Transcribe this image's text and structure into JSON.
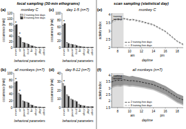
{
  "chart_data": [
    {
      "type": "bar",
      "title": "monkey C",
      "xlabel": "behavioral parameters",
      "ylabel": "occurrence [min]",
      "categories": [
        "move",
        "sit",
        "groom",
        "feed",
        "lie",
        "sleep",
        "play",
        "other"
      ],
      "series": [
        {
          "name": "2 training-free days",
          "color": "#cccccc",
          "values": [
            75,
            40,
            18,
            14,
            7,
            3,
            2,
            1
          ]
        },
        {
          "name": "8 training-free days",
          "color": "#333333",
          "values": [
            80,
            35,
            17,
            12,
            6,
            2,
            1,
            1
          ]
        }
      ],
      "ylim": [
        0,
        120
      ],
      "yticks": [
        0,
        20,
        40,
        60,
        80,
        100,
        120
      ],
      "grid": false,
      "legend": "upper right",
      "annotations": [
        {
          "text": "(a)"
        },
        {
          "text": "focal sampling (30-min ethograms)"
        },
        {
          "text": "*",
          "x": "move"
        },
        {
          "text": "*",
          "x": "sit"
        }
      ]
    },
    {
      "type": "bar",
      "title": "all monkeys (n=7)",
      "xlabel": "behavioral parameters",
      "ylabel": "occurrence [min]",
      "categories": [
        "move",
        "sit",
        "groom",
        "feed",
        "lie",
        "sleep",
        "play",
        "other"
      ],
      "series": [
        {
          "color": "#cccccc",
          "values": [
            72,
            42,
            20,
            16,
            8,
            4,
            2,
            1
          ]
        },
        {
          "color": "#333333",
          "values": [
            76,
            38,
            18,
            14,
            7,
            3,
            2,
            1
          ]
        }
      ],
      "ylim": [
        0,
        100
      ],
      "yticks": [
        0,
        20,
        40,
        60,
        80,
        100
      ],
      "grid": false,
      "legend": false,
      "annotations": [
        {
          "text": "(b)"
        },
        {
          "text": "*",
          "x": "move"
        },
        {
          "text": "*",
          "x": "sit"
        }
      ]
    },
    {
      "type": "bar",
      "title": "day 1-5 (n=7)",
      "xlabel": "behavioral parameters",
      "ylabel": "occurrence [min]",
      "categories": [
        "move",
        "sit",
        "groom",
        "feed",
        "lie",
        "sleep",
        "play",
        "other"
      ],
      "series": [
        {
          "color": "#cccccc",
          "values": [
            65,
            15,
            10,
            8,
            4,
            2,
            1,
            1
          ]
        },
        {
          "color": "#333333",
          "values": [
            70,
            12,
            9,
            6,
            3,
            2,
            1,
            1
          ]
        }
      ],
      "ylim": [
        0,
        100
      ],
      "yticks": [
        0,
        20,
        40,
        60,
        80,
        100
      ],
      "grid": false,
      "legend": false,
      "annotations": [
        {
          "text": "(c)"
        },
        {
          "text": "*",
          "x": "move"
        }
      ]
    },
    {
      "type": "bar",
      "title": "day 8-12 (n=7)",
      "xlabel": "behavioral parameters",
      "ylabel": "occurrence [min]",
      "categories": [
        "move",
        "sit",
        "groom",
        "feed",
        "lie",
        "sleep",
        "play",
        "other"
      ],
      "series": [
        {
          "color": "#cccccc",
          "values": [
            28,
            15,
            10,
            8,
            4,
            2,
            1,
            1
          ]
        },
        {
          "color": "#333333",
          "values": [
            25,
            13,
            9,
            7,
            3,
            2,
            1,
            1
          ]
        }
      ],
      "ylim": [
        0,
        40
      ],
      "yticks": [
        0,
        10,
        20,
        30,
        40
      ],
      "grid": false,
      "legend": false,
      "annotations": [
        {
          "text": "(d)"
        },
        {
          "text": "*",
          "x": "move"
        }
      ]
    },
    {
      "type": "line",
      "title": "monkey C",
      "xlabel": "daytime",
      "ylabel": "activity index",
      "x": [
        7.0,
        7.5,
        8.0,
        8.5,
        9.0,
        9.5,
        10.0,
        10.5,
        11.0,
        11.5,
        12.0,
        12.5,
        13.0,
        13.5,
        14.0,
        14.5,
        15.0,
        15.5,
        16.0,
        16.5,
        17.0,
        17.5,
        18.0,
        18.5,
        19.0
      ],
      "series": [
        {
          "name": "2 training-free days",
          "color": "#000000",
          "line_style": "dashed",
          "values": [
            3.6,
            3.7,
            3.75,
            3.72,
            3.78,
            3.75,
            3.7,
            3.72,
            3.68,
            3.65,
            3.6,
            3.55,
            3.5,
            3.45,
            3.4,
            3.3,
            3.2,
            3.1,
            3.0,
            2.85,
            2.7,
            2.55,
            2.4,
            2.3,
            2.2
          ]
        },
        {
          "name": "8 training-free days",
          "color": "#888888",
          "line_style": "dashed",
          "values": [
            3.5,
            3.62,
            3.68,
            3.65,
            3.72,
            3.7,
            3.65,
            3.68,
            3.62,
            3.58,
            3.54,
            3.5,
            3.45,
            3.4,
            3.35,
            3.25,
            3.15,
            3.05,
            2.95,
            2.8,
            2.65,
            2.5,
            2.35,
            2.25,
            2.15
          ]
        }
      ],
      "xlim": [
        7,
        19
      ],
      "xticks": [
        8,
        10,
        12,
        14,
        16,
        18
      ],
      "ylim": [
        2.0,
        4.1
      ],
      "yticks": [
        2,
        2.5,
        3,
        3.5,
        4
      ],
      "grid": false,
      "legend": "lower left",
      "shaded_range": [
        7.0,
        9.0
      ],
      "annotations": [
        {
          "text": "(e)"
        },
        {
          "text": "scan sampling (statistical day)"
        },
        {
          "text": "training\nsession",
          "x": 8.0,
          "y": 4.0
        },
        {
          "text": "am",
          "x": 10.5
        },
        {
          "text": "pm",
          "x": 15.5
        }
      ]
    },
    {
      "type": "line",
      "title": "all monkeys (n=7)",
      "xlabel": "daytime",
      "ylabel": "activity index",
      "x": [
        7.0,
        7.5,
        8.0,
        8.5,
        9.0,
        9.5,
        10.0,
        10.5,
        11.0,
        11.5,
        12.0,
        12.5,
        13.0,
        13.5,
        14.0,
        14.5,
        15.0,
        15.5,
        16.0,
        16.5,
        17.0,
        17.5,
        18.0,
        18.5,
        19.0
      ],
      "series": [
        {
          "type": "band",
          "color": "#444444",
          "lower": [
            3.1,
            3.2,
            3.25,
            3.22,
            3.3,
            3.28,
            3.22,
            3.24,
            3.2,
            3.18,
            3.14,
            3.1,
            3.05,
            3.0,
            2.95,
            2.85,
            2.75,
            2.65,
            2.55,
            2.4,
            2.25,
            2.1,
            1.95,
            1.85,
            1.75
          ],
          "upper": [
            3.9,
            4.0,
            4.05,
            4.0,
            4.05,
            4.0,
            3.95,
            3.98,
            3.92,
            3.88,
            3.82,
            3.75,
            3.7,
            3.65,
            3.6,
            3.5,
            3.4,
            3.3,
            3.2,
            3.05,
            2.9,
            2.75,
            2.6,
            2.5,
            2.4
          ]
        },
        {
          "type": "band",
          "color": "#999999",
          "lower": [
            3.0,
            3.1,
            3.15,
            3.12,
            3.2,
            3.18,
            3.12,
            3.14,
            3.1,
            3.08,
            3.04,
            3.0,
            2.95,
            2.9,
            2.85,
            2.75,
            2.65,
            2.55,
            2.45,
            2.3,
            2.15,
            2.0,
            1.85,
            1.75,
            1.65
          ],
          "upper": [
            3.7,
            3.8,
            3.85,
            3.82,
            3.88,
            3.85,
            3.8,
            3.82,
            3.76,
            3.72,
            3.66,
            3.6,
            3.55,
            3.5,
            3.45,
            3.35,
            3.25,
            3.15,
            3.05,
            2.9,
            2.75,
            2.6,
            2.45,
            2.35,
            2.25
          ]
        },
        {
          "name": "2 training-free days",
          "color": "#000000",
          "line_style": "dashed",
          "values": [
            3.5,
            3.6,
            3.65,
            3.62,
            3.68,
            3.65,
            3.6,
            3.62,
            3.58,
            3.55,
            3.5,
            3.45,
            3.4,
            3.35,
            3.3,
            3.2,
            3.1,
            3.0,
            2.9,
            2.75,
            2.6,
            2.45,
            2.3,
            2.2,
            2.1
          ]
        },
        {
          "name": "8 training-free days",
          "color": "#888888",
          "line_style": "dashed",
          "values": [
            3.4,
            3.5,
            3.55,
            3.52,
            3.58,
            3.55,
            3.5,
            3.52,
            3.48,
            3.45,
            3.4,
            3.35,
            3.3,
            3.25,
            3.2,
            3.1,
            3.0,
            2.9,
            2.8,
            2.65,
            2.5,
            2.35,
            2.2,
            2.1,
            2.0
          ]
        }
      ],
      "xlim": [
        7,
        19
      ],
      "xticks": [
        8,
        10,
        12,
        14,
        16,
        18
      ],
      "ylim": [
        1.5,
        4.2
      ],
      "yticks": [
        1.5,
        2,
        2.5,
        3,
        3.5,
        4
      ],
      "grid": false,
      "legend": "lower left",
      "shaded_range": [
        7.0,
        9.0
      ],
      "annotations": [
        {
          "text": "(f)"
        },
        {
          "text": "training\nsession",
          "x": 8.0,
          "y": 4.1
        },
        {
          "text": "am",
          "x": 10.5
        },
        {
          "text": "pm",
          "x": 15.5
        }
      ]
    }
  ]
}
